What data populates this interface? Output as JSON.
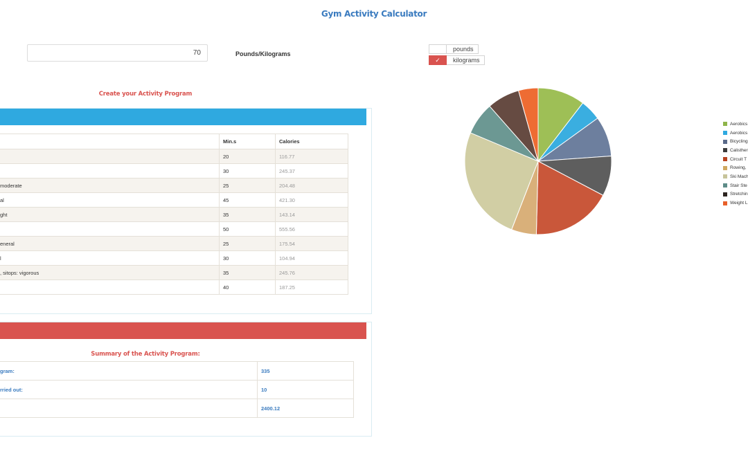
{
  "header": {
    "title": "Gym Activity Calculator"
  },
  "weight": {
    "value": "70",
    "units_label": "Pounds/Kilograms"
  },
  "units": [
    {
      "label": "pounds",
      "checked": false,
      "mark": ""
    },
    {
      "label": "kilograms",
      "checked": true,
      "mark": "✓"
    }
  ],
  "program": {
    "heading": "Create your Activity Program",
    "columns": [
      "",
      "Min.s",
      "Calories"
    ],
    "rows": [
      {
        "name": "",
        "mins": "20",
        "calories": "116.77"
      },
      {
        "name": "",
        "mins": "30",
        "calories": "245.37"
      },
      {
        "name": "moderate",
        "mins": "25",
        "calories": "204.48"
      },
      {
        "name": "al",
        "mins": "45",
        "calories": "421.30"
      },
      {
        "name": "ght",
        "mins": "35",
        "calories": "143.14"
      },
      {
        "name": "",
        "mins": "50",
        "calories": "555.56"
      },
      {
        "name": "eneral",
        "mins": "25",
        "calories": "175.54"
      },
      {
        "name": "l",
        "mins": "30",
        "calories": "104.94"
      },
      {
        "name": ", sitops: vigorous",
        "mins": "35",
        "calories": "245.76"
      },
      {
        "name": "",
        "mins": "40",
        "calories": "187.25"
      }
    ]
  },
  "summary": {
    "heading": "Summary of the Activity Program:",
    "rows": [
      {
        "label": "gram:",
        "value": "335"
      },
      {
        "label": "rried out:",
        "value": "10"
      },
      {
        "label": "",
        "value": "2400.12"
      }
    ]
  },
  "chart_data": {
    "type": "pie",
    "labels": [
      "Aerobics",
      "Aerobics",
      "Bicycling",
      "Calisther",
      "Circuit T",
      "Rowing,",
      "Ski Mach",
      "Stair Ste",
      "Stretchin",
      "Weight L"
    ],
    "values": [
      116.77,
      245.37,
      204.48,
      421.3,
      143.14,
      555.56,
      175.54,
      104.94,
      245.76,
      187.25
    ],
    "legend_colors": [
      "#8fb54a",
      "#2fa9e0",
      "#5a6a8a",
      "#3c3c3c",
      "#b8421f",
      "#d0a860",
      "#c7c49a",
      "#5e8c88",
      "#2d2420",
      "#e8602a"
    ],
    "slices": [
      {
        "value": 0.106,
        "color": "#9ebf56"
      },
      {
        "value": 0.047,
        "color": "#3aaee0"
      },
      {
        "value": 0.09,
        "color": "#6d7f9e"
      },
      {
        "value": 0.09,
        "color": "#5e5e5e"
      },
      {
        "value": 0.18,
        "color": "#c9573a"
      },
      {
        "value": 0.056,
        "color": "#d9b07a"
      },
      {
        "value": 0.259,
        "color": "#d1cea4"
      },
      {
        "value": 0.073,
        "color": "#6c9893"
      },
      {
        "value": 0.073,
        "color": "#664b42"
      },
      {
        "value": 0.044,
        "color": "#ee6c33"
      }
    ],
    "legend": "right"
  }
}
